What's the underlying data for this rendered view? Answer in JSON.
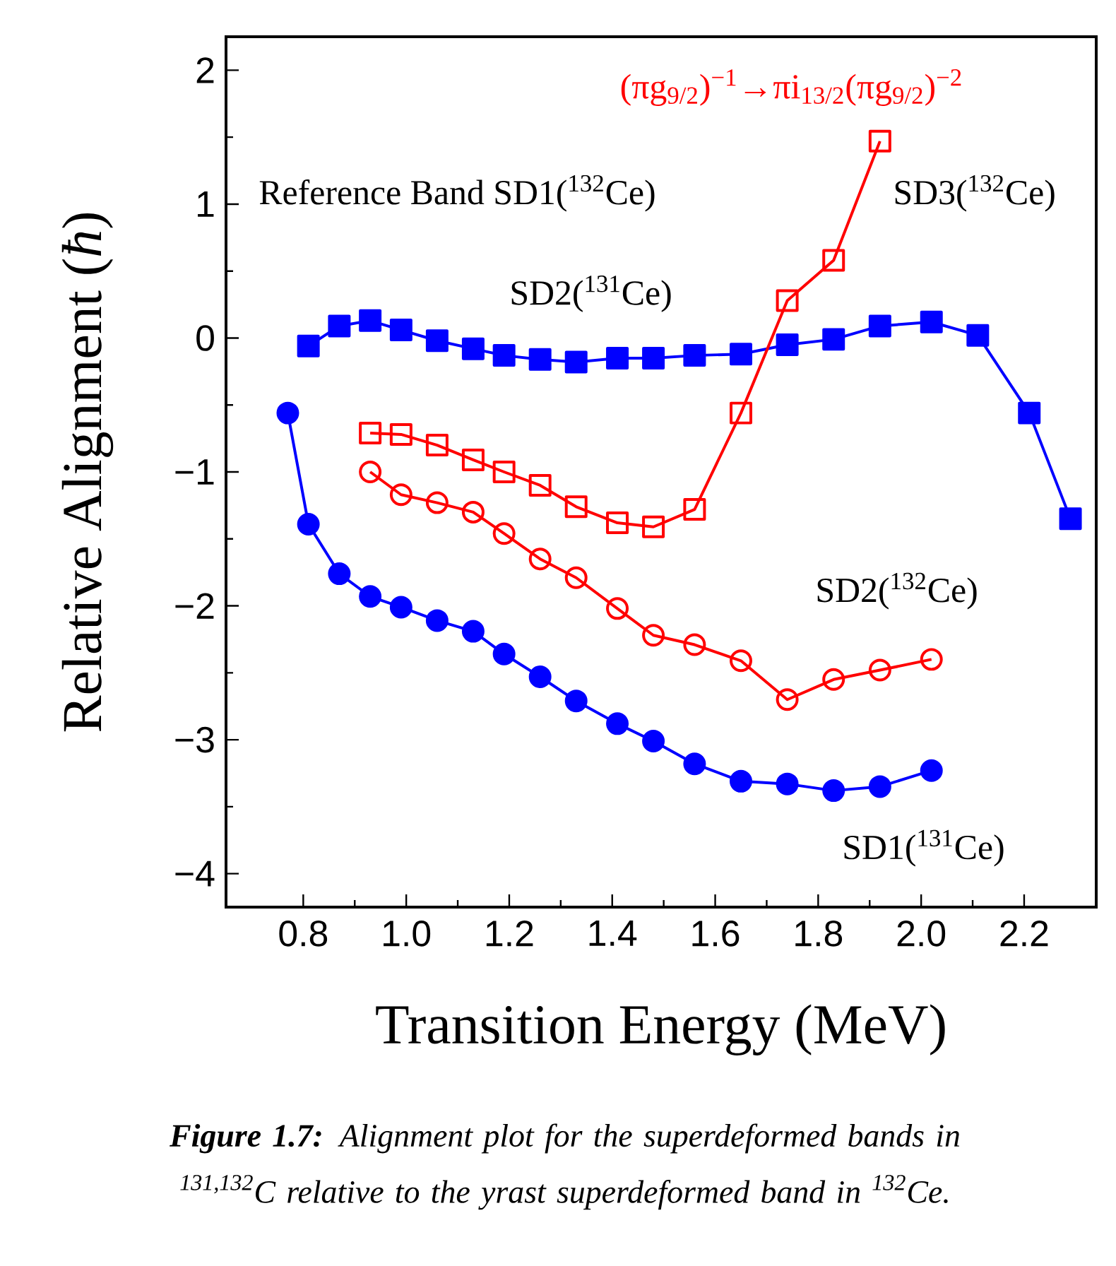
{
  "chart_data": {
    "type": "line",
    "xlabel": "Transition Energy (MeV)",
    "ylabel": "Relative Alignment (*ħ*)",
    "xlim": [
      0.65,
      2.34
    ],
    "ylim": [
      -4.25,
      2.25
    ],
    "xticks": [
      0.8,
      {
        "value": 1,
        "label": "1.0"
      },
      1.2,
      1.4,
      1.6,
      1.8,
      {
        "value": 2,
        "label": "2.0"
      },
      2.2
    ],
    "yticks": [
      {
        "value": -4,
        "label": "−4"
      },
      {
        "value": -3,
        "label": "−3"
      },
      {
        "value": -2,
        "label": "−2"
      },
      {
        "value": -1,
        "label": "−1"
      },
      0,
      1,
      2
    ],
    "series": [
      {
        "name": "SD2($^{131}$Ce)",
        "color": "#0000ff",
        "marker": "square",
        "x": [
          0.81,
          0.87,
          0.93,
          0.99,
          1.06,
          1.13,
          1.19,
          1.26,
          1.33,
          1.41,
          1.48,
          1.56,
          1.65,
          1.74,
          1.83,
          1.92,
          2.02,
          2.11,
          2.21,
          2.29
        ],
        "values": [
          -0.06,
          0.09,
          0.13,
          0.06,
          -0.02,
          -0.08,
          -0.13,
          -0.16,
          -0.18,
          -0.15,
          -0.15,
          -0.13,
          -0.12,
          -0.05,
          -0.01,
          0.09,
          0.12,
          0.02,
          -0.56,
          -1.35
        ]
      },
      {
        "name": "SD3($^{132}$Ce)",
        "color": "#ff0000",
        "marker": "square",
        "x": [
          0.93,
          0.99,
          1.06,
          1.13,
          1.19,
          1.26,
          1.33,
          1.41,
          1.48,
          1.56,
          1.65,
          1.74,
          1.83,
          1.92
        ],
        "values": [
          -0.71,
          -0.72,
          -0.8,
          -0.91,
          -1.0,
          -1.1,
          -1.26,
          -1.38,
          -1.41,
          -1.28,
          -0.56,
          0.28,
          0.58,
          1.47
        ]
      },
      {
        "name": "SD2($^{132}$Ce)",
        "color": "#ff0000",
        "marker": "circle",
        "x": [
          0.93,
          0.99,
          1.06,
          1.13,
          1.19,
          1.26,
          1.33,
          1.41,
          1.48,
          1.56,
          1.65,
          1.74,
          1.83,
          1.92,
          2.02
        ],
        "values": [
          -1.0,
          -1.17,
          -1.23,
          -1.3,
          -1.46,
          -1.65,
          -1.79,
          -2.02,
          -2.22,
          -2.29,
          -2.41,
          -2.7,
          -2.55,
          -2.48,
          -2.4
        ]
      },
      {
        "name": "SD1($^{131}$Ce)",
        "color": "#0000ff",
        "marker": "circle",
        "x": [
          0.77,
          0.81,
          0.87,
          0.93,
          0.99,
          1.06,
          1.13,
          1.19,
          1.26,
          1.33,
          1.41,
          1.48,
          1.56,
          1.65,
          1.74,
          1.83,
          1.92,
          2.02
        ],
        "values": [
          -0.56,
          -1.39,
          -1.76,
          -1.93,
          -2.01,
          -2.11,
          -2.19,
          -2.36,
          -2.53,
          -2.71,
          -2.88,
          -3.01,
          -3.18,
          -3.31,
          -3.33,
          -3.38,
          -3.35,
          -3.23
        ]
      }
    ],
    "annotations": [
      "Reference Band SD1($^{132}$Ce)",
      "(πg$_{9/2}$)$^{−1}$→πi$_{13/2}$(πg$_{9/2}$)$^{−2}$",
      "**Figure 1.7:** Alignment plot for the superdeformed bands in $^{131,132}$C relative to the yrast superdeformed band in $^{132}$Ce."
    ]
  }
}
